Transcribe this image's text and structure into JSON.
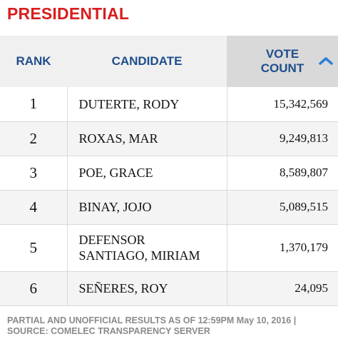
{
  "colors": {
    "title": "#d81e1e",
    "header_text": "#1f4e8c",
    "header_bg_left": "#f0f0f0",
    "header_bg_sorted": "#d9d9d9",
    "row_alt_bg": "#f4f4f4",
    "sort_icon": "#2f7fd4"
  },
  "title": "PRESIDENTIAL",
  "header": {
    "rank": "RANK",
    "candidate": "CANDIDATE",
    "votes_line1": "VOTE",
    "votes_line2": "COUNT",
    "sort_icon": "chevron-up-icon"
  },
  "rows": [
    {
      "rank": "1",
      "candidate_line1": "DUTERTE, RODY",
      "candidate_line2": "",
      "votes": "15,342,569"
    },
    {
      "rank": "2",
      "candidate_line1": "ROXAS, MAR",
      "candidate_line2": "",
      "votes": "9,249,813"
    },
    {
      "rank": "3",
      "candidate_line1": "POE, GRACE",
      "candidate_line2": "",
      "votes": "8,589,807"
    },
    {
      "rank": "4",
      "candidate_line1": "BINAY, JOJO",
      "candidate_line2": "",
      "votes": "5,089,515"
    },
    {
      "rank": "5",
      "candidate_line1": "DEFENSOR",
      "candidate_line2": "SANTIAGO, MIRIAM",
      "votes": "1,370,179"
    },
    {
      "rank": "6",
      "candidate_line1": "SEÑERES, ROY",
      "candidate_line2": "",
      "votes": "24,095"
    }
  ],
  "footer": {
    "line1": "PARTIAL AND UNOFFICIAL RESULTS AS OF 12:59PM May 10, 2016 |",
    "line2": "SOURCE: COMELEC TRANSPARENCY SERVER"
  }
}
